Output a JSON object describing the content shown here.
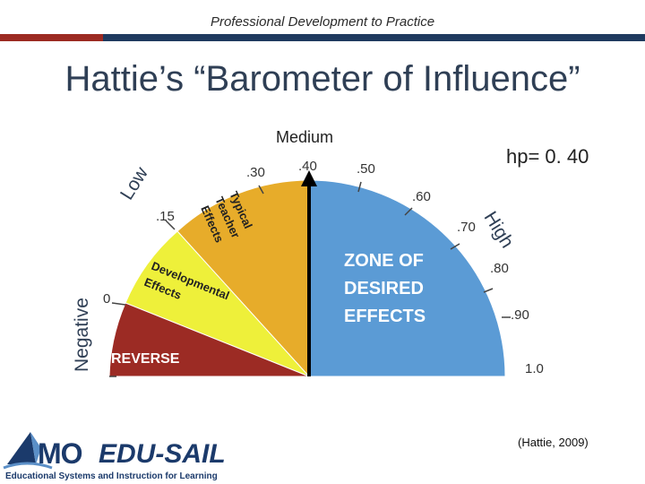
{
  "header": {
    "subtitle": "Professional Development to Practice",
    "title": "Hattie’s “Barometer of Influence”"
  },
  "annotations": {
    "medium": "Medium",
    "hp": "hp= 0. 40",
    "low": "Low",
    "high": "High",
    "negative": "Negative",
    "citation": "(Hattie, 2009)"
  },
  "gauge": {
    "tick_labels": [
      "0",
      ".15",
      ".30",
      ".40",
      ".50",
      ".60",
      ".70",
      ".80",
      ".90",
      "1.0"
    ],
    "zones": {
      "reverse": "REVERSE",
      "developmental": [
        "Developmental",
        "Effects"
      ],
      "teacher": [
        "Typical",
        "Teacher",
        "Effects"
      ],
      "desired": [
        "ZONE OF",
        "DESIRED",
        "EFFECTS"
      ]
    },
    "needle_value": 0.4,
    "colors": {
      "reverse": "#9c2b24",
      "developmental": "#eef03a",
      "teacher": "#e7ac2a",
      "desired": "#5b9bd5"
    }
  },
  "logo": {
    "mo": "MO",
    "edusail": "EDU-SAIL",
    "tagline": "Educational Systems and Instruction for Learning"
  }
}
